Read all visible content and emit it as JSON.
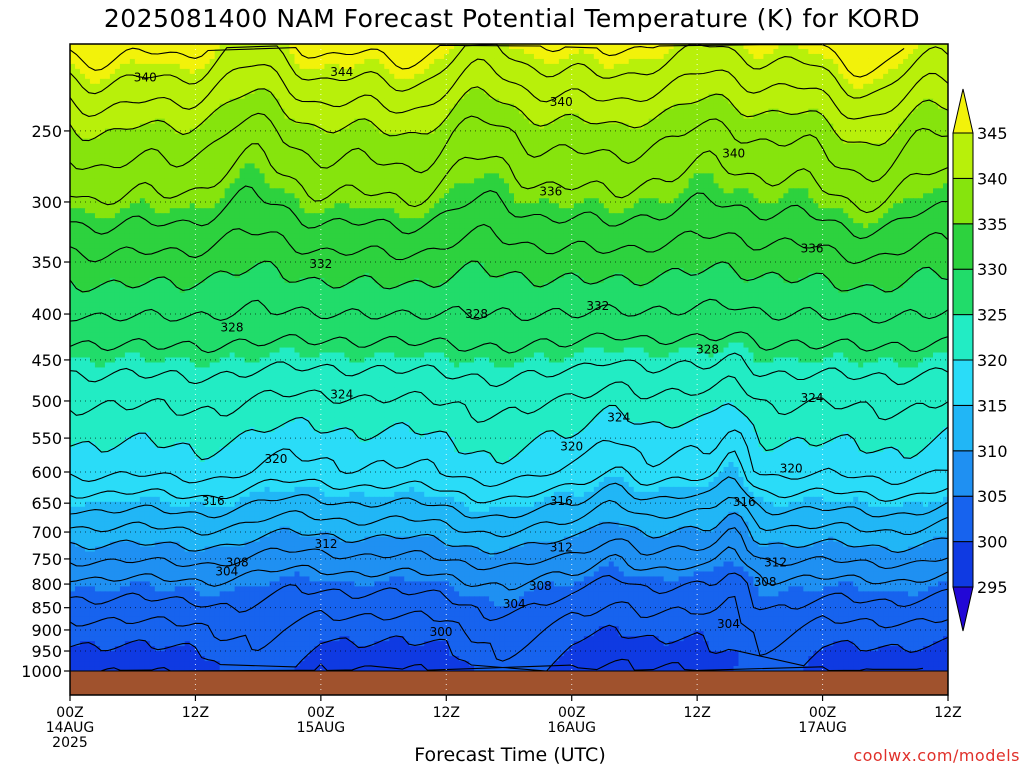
{
  "chart_data": {
    "type": "heatmap",
    "title": "2025081400 NAM Forecast Potential Temperature (K) for KORD",
    "xlabel": "Forecast Time (UTC)",
    "ylabel": "",
    "y_scale": "log-pressure (inverted)",
    "ylim": [
      1000,
      200
    ],
    "y_ticks": [
      250,
      300,
      350,
      400,
      450,
      500,
      550,
      600,
      650,
      700,
      750,
      800,
      850,
      900,
      950,
      1000
    ],
    "x_ticks": [
      {
        "hour": 0,
        "label": "00Z",
        "sub1": "14AUG",
        "sub2": "2025"
      },
      {
        "hour": 12,
        "label": "12Z",
        "sub1": "",
        "sub2": ""
      },
      {
        "hour": 24,
        "label": "00Z",
        "sub1": "15AUG",
        "sub2": ""
      },
      {
        "hour": 36,
        "label": "12Z",
        "sub1": "",
        "sub2": ""
      },
      {
        "hour": 48,
        "label": "00Z",
        "sub1": "16AUG",
        "sub2": ""
      },
      {
        "hour": 60,
        "label": "12Z",
        "sub1": "",
        "sub2": ""
      },
      {
        "hour": 72,
        "label": "00Z",
        "sub1": "17AUG",
        "sub2": ""
      },
      {
        "hour": 84,
        "label": "12Z",
        "sub1": "",
        "sub2": ""
      }
    ],
    "xlim": [
      0,
      84
    ],
    "grid": true,
    "colorbar": {
      "levels": [
        295,
        300,
        305,
        310,
        315,
        320,
        325,
        330,
        335,
        340,
        345
      ],
      "colors": [
        "#2208d6",
        "#0f3ae2",
        "#1763ee",
        "#1f90f2",
        "#21b6f6",
        "#2adcf8",
        "#22ecc4",
        "#21dc6a",
        "#2dd23e",
        "#86e40d",
        "#b8f00a",
        "#f2f20a"
      ],
      "extend": "both"
    },
    "contour_labels": [
      {
        "t": 7.2,
        "p": 218,
        "v": "340"
      },
      {
        "t": 26.0,
        "p": 215,
        "v": "344"
      },
      {
        "t": 47.0,
        "p": 232,
        "v": "340"
      },
      {
        "t": 63.5,
        "p": 265,
        "v": "340"
      },
      {
        "t": 46.0,
        "p": 292,
        "v": "336"
      },
      {
        "t": 71.0,
        "p": 338,
        "v": "336"
      },
      {
        "t": 24.0,
        "p": 352,
        "v": "332"
      },
      {
        "t": 50.5,
        "p": 392,
        "v": "332"
      },
      {
        "t": 15.5,
        "p": 414,
        "v": "328"
      },
      {
        "t": 38.9,
        "p": 400,
        "v": "328"
      },
      {
        "t": 61.0,
        "p": 438,
        "v": "328"
      },
      {
        "t": 26.0,
        "p": 492,
        "v": "324"
      },
      {
        "t": 52.5,
        "p": 522,
        "v": "324"
      },
      {
        "t": 71.0,
        "p": 496,
        "v": "324"
      },
      {
        "t": 19.7,
        "p": 580,
        "v": "320"
      },
      {
        "t": 48.0,
        "p": 562,
        "v": "320"
      },
      {
        "t": 69.0,
        "p": 595,
        "v": "320"
      },
      {
        "t": 13.7,
        "p": 646,
        "v": "316"
      },
      {
        "t": 47.0,
        "p": 646,
        "v": "316"
      },
      {
        "t": 64.5,
        "p": 648,
        "v": "316"
      },
      {
        "t": 24.5,
        "p": 722,
        "v": "312"
      },
      {
        "t": 47.0,
        "p": 728,
        "v": "312"
      },
      {
        "t": 67.5,
        "p": 757,
        "v": "312"
      },
      {
        "t": 16.0,
        "p": 757,
        "v": "308"
      },
      {
        "t": 45.0,
        "p": 804,
        "v": "308"
      },
      {
        "t": 66.5,
        "p": 796,
        "v": "308"
      },
      {
        "t": 15.0,
        "p": 775,
        "v": "304"
      },
      {
        "t": 42.5,
        "p": 842,
        "v": "304"
      },
      {
        "t": 63.0,
        "p": 886,
        "v": "304"
      },
      {
        "t": 35.5,
        "p": 905,
        "v": "300"
      }
    ]
  },
  "credit": "coolwx.com/models"
}
